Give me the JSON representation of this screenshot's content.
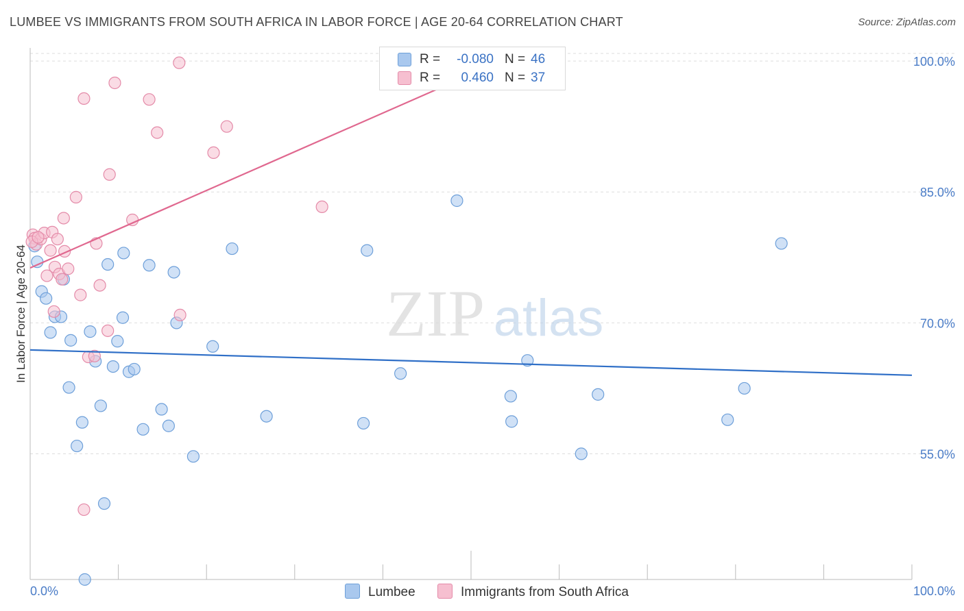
{
  "title": "LUMBEE VS IMMIGRANTS FROM SOUTH AFRICA IN LABOR FORCE | AGE 20-64 CORRELATION CHART",
  "source": "Source: ZipAtlas.com",
  "watermark": {
    "zip": "ZIP",
    "atlas": "atlas"
  },
  "legend": {
    "rows": [
      {
        "r_label": "R =",
        "r_value": "-0.080",
        "n_label": "N =",
        "n_value": "46"
      },
      {
        "r_label": "R =",
        "r_value": "0.460",
        "n_label": "N =",
        "n_value": "37"
      }
    ]
  },
  "bottom_legend": {
    "lumbee": "Lumbee",
    "immigrants": "Immigrants from South Africa"
  },
  "colors": {
    "lumbee_fill": "#a9c8ee",
    "lumbee_stroke": "#6d9fd9",
    "lumbee_line": "#2f6fc7",
    "imm_fill": "#f6bfd0",
    "imm_stroke": "#e48aa8",
    "imm_line": "#e0688f",
    "grid": "#dddddd",
    "tick_label": "#4a7cc7"
  },
  "chart_data": {
    "type": "scatter",
    "title": "LUMBEE VS IMMIGRANTS FROM SOUTH AFRICA IN LABOR FORCE | AGE 20-64 CORRELATION CHART",
    "xlabel": "",
    "ylabel": "In Labor Force | Age 20-64",
    "xlim": [
      0,
      100
    ],
    "ylim": [
      40.6,
      101.5
    ],
    "y_ticks": [
      55,
      70,
      85,
      100
    ],
    "y_tick_labels": [
      "55.0%",
      "70.0%",
      "85.0%",
      "100.0%"
    ],
    "x_tick_labels": [
      "0.0%",
      "100.0%"
    ],
    "grid": true,
    "series": [
      {
        "name": "Lumbee",
        "points": [
          [
            0.5,
            78.8
          ],
          [
            0.8,
            77.0
          ],
          [
            1.3,
            73.6
          ],
          [
            1.8,
            72.8
          ],
          [
            2.3,
            68.9
          ],
          [
            2.8,
            70.7
          ],
          [
            3.5,
            70.7
          ],
          [
            3.8,
            75.0
          ],
          [
            4.4,
            62.6
          ],
          [
            4.6,
            68.0
          ],
          [
            5.3,
            55.9
          ],
          [
            5.9,
            58.6
          ],
          [
            6.8,
            69.0
          ],
          [
            7.4,
            65.6
          ],
          [
            8.0,
            60.5
          ],
          [
            8.4,
            49.3
          ],
          [
            8.8,
            76.7
          ],
          [
            9.4,
            65.0
          ],
          [
            9.9,
            67.9
          ],
          [
            10.5,
            70.6
          ],
          [
            10.6,
            78.0
          ],
          [
            11.2,
            64.4
          ],
          [
            11.8,
            64.7
          ],
          [
            12.8,
            57.8
          ],
          [
            13.5,
            76.6
          ],
          [
            14.9,
            60.1
          ],
          [
            15.7,
            58.2
          ],
          [
            16.3,
            75.8
          ],
          [
            16.6,
            70.0
          ],
          [
            18.5,
            54.7
          ],
          [
            20.7,
            67.3
          ],
          [
            22.9,
            78.5
          ],
          [
            26.8,
            59.3
          ],
          [
            37.8,
            58.5
          ],
          [
            38.2,
            78.3
          ],
          [
            42.0,
            64.2
          ],
          [
            48.4,
            84.0
          ],
          [
            54.5,
            61.6
          ],
          [
            54.6,
            58.7
          ],
          [
            56.4,
            65.7
          ],
          [
            62.5,
            55.0
          ],
          [
            64.4,
            61.8
          ],
          [
            79.1,
            58.9
          ],
          [
            81.0,
            62.5
          ],
          [
            85.2,
            79.1
          ],
          [
            6.2,
            40.6
          ]
        ],
        "trend": {
          "x": [
            0,
            100
          ],
          "y": [
            66.9,
            64.0
          ]
        }
      },
      {
        "name": "Immigrants from South Africa",
        "points": [
          [
            0.3,
            80.1
          ],
          [
            0.5,
            79.7
          ],
          [
            0.7,
            79.0
          ],
          [
            1.2,
            79.6
          ],
          [
            1.6,
            80.3
          ],
          [
            1.9,
            75.4
          ],
          [
            2.3,
            78.3
          ],
          [
            2.5,
            80.4
          ],
          [
            2.7,
            71.3
          ],
          [
            2.8,
            76.4
          ],
          [
            3.1,
            79.6
          ],
          [
            3.3,
            75.6
          ],
          [
            3.6,
            75.0
          ],
          [
            3.8,
            82.0
          ],
          [
            3.9,
            78.2
          ],
          [
            4.3,
            76.2
          ],
          [
            5.2,
            84.4
          ],
          [
            5.7,
            73.2
          ],
          [
            6.1,
            95.7
          ],
          [
            6.1,
            48.6
          ],
          [
            6.6,
            66.1
          ],
          [
            7.3,
            66.2
          ],
          [
            7.5,
            79.1
          ],
          [
            7.9,
            74.3
          ],
          [
            8.8,
            69.1
          ],
          [
            9.0,
            87.0
          ],
          [
            9.6,
            97.5
          ],
          [
            11.6,
            81.8
          ],
          [
            13.5,
            95.6
          ],
          [
            14.4,
            91.8
          ],
          [
            17.0,
            70.9
          ],
          [
            16.9,
            99.8
          ],
          [
            20.8,
            89.5
          ],
          [
            22.3,
            92.5
          ],
          [
            33.1,
            83.3
          ],
          [
            0.2,
            79.3
          ],
          [
            0.9,
            79.8
          ]
        ],
        "trend": {
          "x": [
            0,
            50.5
          ],
          "y": [
            76.3,
            98.7
          ]
        }
      }
    ]
  }
}
